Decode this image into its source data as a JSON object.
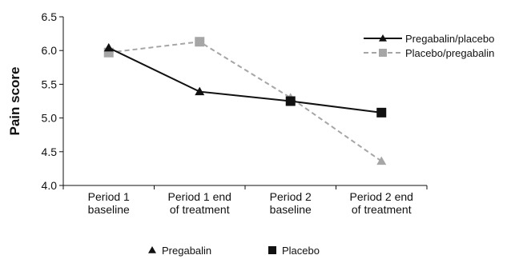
{
  "chart_data": {
    "type": "line",
    "ylabel": "Pain score",
    "xlabel": "",
    "ylim": [
      4.0,
      6.5
    ],
    "yticks": [
      "4.0",
      "4.5",
      "5.0",
      "5.5",
      "6.0",
      "6.5"
    ],
    "categories": [
      [
        "Period 1",
        "baseline"
      ],
      [
        "Period 1 end",
        "of treatment"
      ],
      [
        "Period 2",
        "baseline"
      ],
      [
        "Period 2 end",
        "of treatment"
      ]
    ],
    "series": [
      {
        "name": "Pregabalin/placebo",
        "color": "#111111",
        "dash": "solid",
        "values": [
          6.04,
          5.39,
          5.25,
          5.08
        ],
        "markers": [
          "triangle",
          "triangle",
          "square",
          "square"
        ]
      },
      {
        "name": "Placebo/pregabalin",
        "color": "#a6a6a6",
        "dash": "dashed",
        "values": [
          5.97,
          6.13,
          5.3,
          4.36
        ],
        "markers": [
          "square",
          "square",
          "triangle",
          "triangle"
        ]
      }
    ],
    "legend_position": "top-right",
    "marker_key": [
      {
        "symbol": "triangle",
        "label": "Pregabalin"
      },
      {
        "symbol": "square",
        "label": "Placebo"
      }
    ],
    "grid": false
  }
}
